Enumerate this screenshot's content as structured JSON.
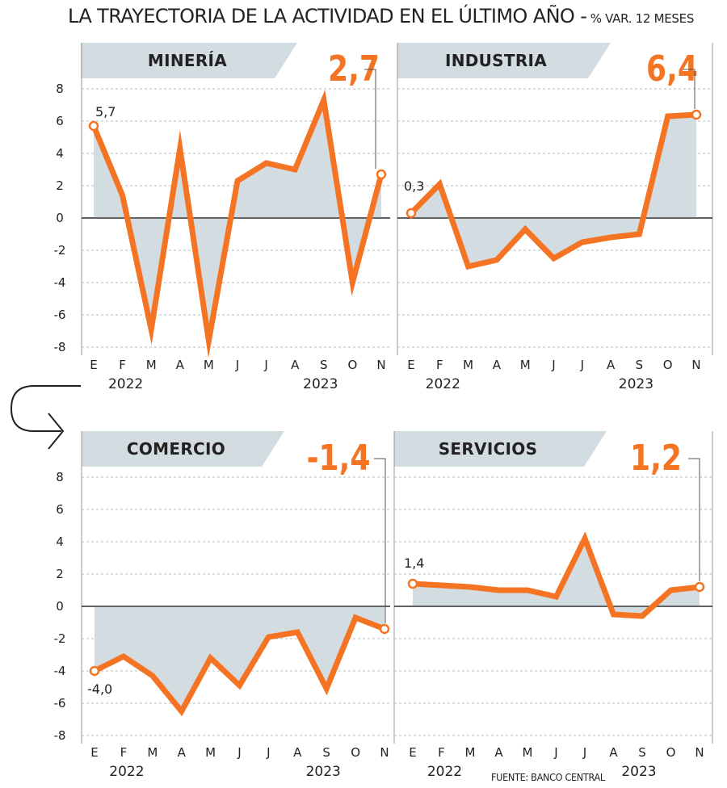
{
  "title": "LA TRAYECTORIA DE LA ACTIVIDAD EN EL ÚLTIMO AÑO -",
  "subtitle": "% VAR. 12 MESES",
  "source": "FUENTE: BANCO CENTRAL",
  "colors": {
    "line": "#f47423",
    "area": "#d3dce0",
    "banner": "#d3dce0",
    "text": "#222222",
    "grid": "#bbbbbb"
  },
  "chart_data": [
    {
      "type": "area",
      "title": "MINERÍA",
      "categories": [
        "E",
        "F",
        "M",
        "A",
        "M",
        "J",
        "J",
        "A",
        "S",
        "O",
        "N"
      ],
      "year_labels": [
        "2022",
        "2023"
      ],
      "values": [
        5.7,
        1.4,
        -6.9,
        4.3,
        -7.6,
        2.3,
        3.4,
        3.0,
        7.3,
        -4.0,
        2.7
      ],
      "first_label": "5,7",
      "last_label": "2,7",
      "yticks": [
        "8",
        "6",
        "4",
        "2",
        "0",
        "-2",
        "-4",
        "-6",
        "-8"
      ],
      "ylim": [
        -8,
        8
      ]
    },
    {
      "type": "area",
      "title": "INDUSTRIA",
      "categories": [
        "E",
        "F",
        "M",
        "A",
        "M",
        "J",
        "J",
        "A",
        "S",
        "O",
        "N"
      ],
      "year_labels": [
        "2022",
        "2023"
      ],
      "values": [
        0.3,
        2.1,
        -3.0,
        -2.6,
        -0.7,
        -2.5,
        -1.5,
        -1.2,
        -1.0,
        6.3,
        6.4
      ],
      "first_label": "0,3",
      "last_label": "6,4",
      "yticks": [],
      "ylim": [
        -8,
        8
      ]
    },
    {
      "type": "area",
      "title": "COMERCIO",
      "categories": [
        "E",
        "F",
        "M",
        "A",
        "M",
        "J",
        "J",
        "A",
        "S",
        "O",
        "N"
      ],
      "year_labels": [
        "2022",
        "2023"
      ],
      "values": [
        -4.0,
        -3.1,
        -4.3,
        -6.5,
        -3.2,
        -4.9,
        -1.9,
        -1.6,
        -5.1,
        -0.7,
        -1.4
      ],
      "first_label": "-4,0",
      "last_label": "-1,4",
      "yticks": [
        "8",
        "6",
        "4",
        "2",
        "0",
        "-2",
        "-4",
        "-6",
        "-8"
      ],
      "ylim": [
        -8,
        8
      ]
    },
    {
      "type": "area",
      "title": "SERVICIOS",
      "categories": [
        "E",
        "F",
        "M",
        "A",
        "M",
        "J",
        "J",
        "A",
        "S",
        "O",
        "N"
      ],
      "year_labels": [
        "2022",
        "2023"
      ],
      "values": [
        1.4,
        1.3,
        1.2,
        1.0,
        1.0,
        0.6,
        4.2,
        -0.5,
        -0.6,
        1.0,
        1.2
      ],
      "first_label": "1,4",
      "last_label": "1,2",
      "yticks": [],
      "ylim": [
        -8,
        8
      ]
    }
  ]
}
